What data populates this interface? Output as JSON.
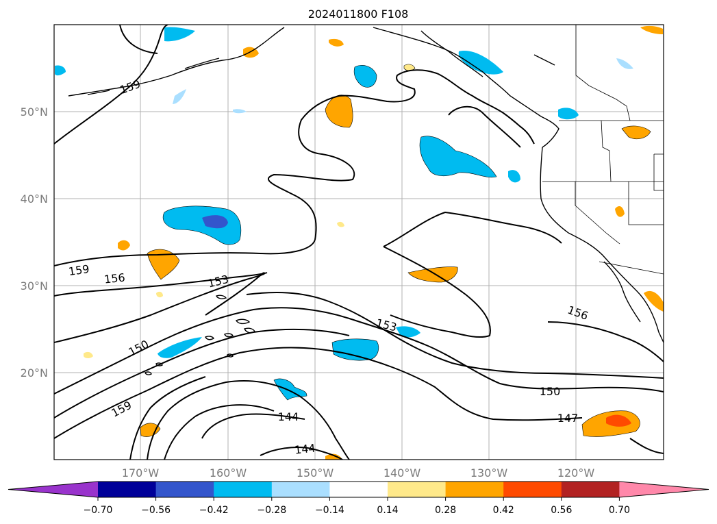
{
  "title": "2024011800 F108",
  "lat_ticks": [
    "50°N",
    "40°N",
    "30°N",
    "20°N"
  ],
  "lon_ticks": [
    "170°W",
    "160°W",
    "150°W",
    "140°W",
    "130°W",
    "120°W"
  ],
  "colorbar": {
    "labels": [
      "−0.70",
      "−0.56",
      "−0.42",
      "−0.28",
      "−0.14",
      "0.14",
      "0.28",
      "0.42",
      "0.56",
      "0.70"
    ],
    "colors": [
      "#9933cc",
      "#000099",
      "#3355cc",
      "#00bbf0",
      "#aadfff",
      "#ffffff",
      "#ffe98a",
      "#ffa500",
      "#ff4a00",
      "#b22222",
      "#ff88aa"
    ]
  },
  "contour_labels": [
    "159",
    "159",
    "156",
    "153",
    "150",
    "159",
    "153",
    "156",
    "150",
    "147",
    "144",
    "144"
  ],
  "colors": {
    "land_outline": "#000000",
    "grid": "#b0b0b0",
    "contour": "#000000"
  }
}
